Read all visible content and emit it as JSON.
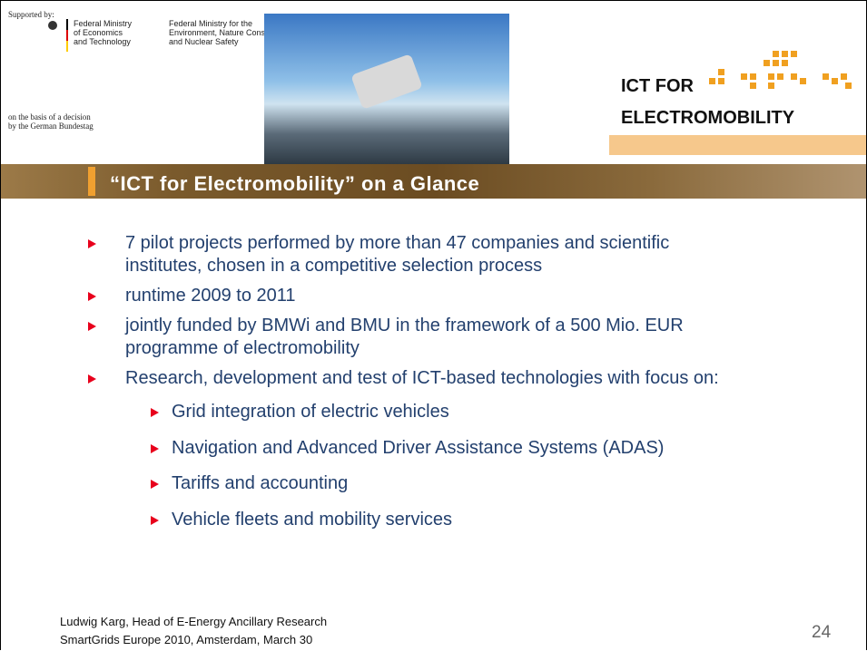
{
  "header": {
    "supported_by": "Supported by:",
    "ministry1": [
      "Federal Ministry",
      "of Economics",
      "and Technology"
    ],
    "ministry2": [
      "Federal Ministry for the",
      "Environment, Nature Conservation",
      "and Nuclear Safety"
    ],
    "decision": [
      "on the basis of a decision",
      "by the German Bundestag"
    ],
    "logo": [
      "ICT FOR",
      "ELECTROMOBILITY"
    ]
  },
  "title": "“ICT for Electromobility” on a Glance",
  "bullets": [
    {
      "lines": [
        "7 pilot projects performed by more than 47 companies and scientific",
        "institutes, chosen in a competitive selection process"
      ]
    },
    {
      "lines": [
        "runtime 2009 to 2011"
      ]
    },
    {
      "lines": [
        "jointly funded by BMWi and BMU in the framework of a 500 Mio. EUR",
        "programme of electromobility"
      ]
    },
    {
      "lines": [
        "Research, development and test of ICT-based technologies with focus on:"
      ],
      "sub": [
        "Grid integration of electric vehicles",
        "Navigation and Advanced Driver Assistance Systems (ADAS)",
        "Tariffs and accounting",
        "Vehicle fleets and mobility services"
      ]
    }
  ],
  "footer": [
    "Ludwig Karg, Head of E-Energy Ancillary Research",
    "SmartGrids Europe 2010, Amsterdam, March 30"
  ],
  "page_number": "24"
}
